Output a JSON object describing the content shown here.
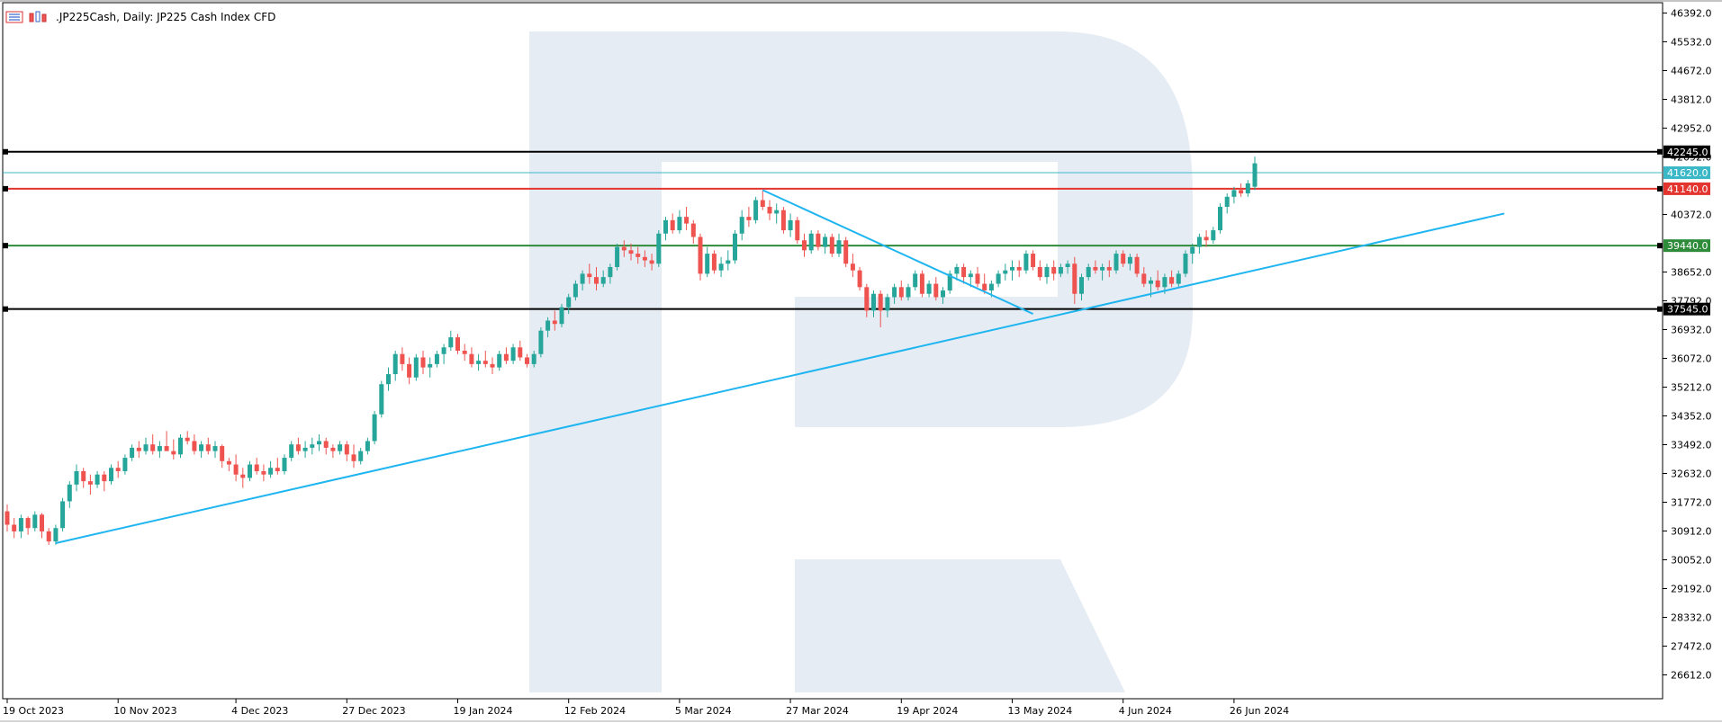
{
  "header": {
    "symbol": ".JP225Cash",
    "timeframe": "Daily",
    "description": "JP225 Cash Index CFD",
    "icons": [
      "candlestick-settings-icon",
      "indicators-icon"
    ]
  },
  "colors": {
    "bull": "#26a69a",
    "bear": "#ef5350",
    "trendline": "#1fb5f0",
    "resistance_black": "#000000",
    "resistance_red": "#e3342f",
    "support_green": "#2e8b3a",
    "current_price": "#3bb8c8",
    "watermark": "#e6ecf3",
    "axis": "#000000"
  },
  "chart_data": {
    "type": "candlestick",
    "title": ".JP225Cash, Daily:  JP225 Cash Index CFD",
    "xlabel": "",
    "ylabel": "",
    "ylim": [
      25900,
      46700
    ],
    "y_ticks": [
      "46392.0",
      "45532.0",
      "44672.0",
      "43812.0",
      "42952.0",
      "42092.0",
      "40372.0",
      "38652.0",
      "37792.0",
      "36932.0",
      "36072.0",
      "35212.0",
      "34352.0",
      "33492.0",
      "32632.0",
      "31772.0",
      "30912.0",
      "30052.0",
      "29192.0",
      "28332.0",
      "27472.0",
      "26612.0"
    ],
    "x_ticks": [
      "19 Oct 2023",
      "10 Nov 2023",
      "4 Dec 2023",
      "27 Dec 2023",
      "19 Jan 2024",
      "12 Feb 2024",
      "5 Mar 2024",
      "27 Mar 2024",
      "19 Apr 2024",
      "13 May 2024",
      "4 Jun 2024",
      "26 Jun 2024"
    ],
    "x_tick_bar_index": [
      0,
      16,
      33,
      49,
      65,
      81,
      97,
      113,
      129,
      145,
      161,
      177
    ],
    "levels": [
      {
        "label": "42245.0",
        "value": 42245.0,
        "color_key": "resistance_black"
      },
      {
        "label": "41620.0",
        "value": 41620.0,
        "color_key": "current_price",
        "thin": true
      },
      {
        "label": "41140.0",
        "value": 41140.0,
        "color_key": "resistance_red"
      },
      {
        "label": "39440.0",
        "value": 39440.0,
        "color_key": "support_green"
      },
      {
        "label": "37545.0",
        "value": 37545.0,
        "color_key": "resistance_black"
      }
    ],
    "trendlines": [
      {
        "from": [
          7,
          30550
        ],
        "to": [
          216,
          40400
        ]
      },
      {
        "from": [
          109,
          41100
        ],
        "to": [
          148,
          37400
        ]
      }
    ],
    "ohlc": [
      [
        31500,
        31700,
        30900,
        31100
      ],
      [
        31100,
        31300,
        30700,
        30900
      ],
      [
        30900,
        31400,
        30700,
        31300
      ],
      [
        31300,
        31350,
        30800,
        31000
      ],
      [
        31000,
        31500,
        30900,
        31400
      ],
      [
        31400,
        31450,
        30700,
        30900
      ],
      [
        30900,
        31000,
        30500,
        30600
      ],
      [
        30600,
        31100,
        30500,
        31000
      ],
      [
        31000,
        31900,
        30900,
        31800
      ],
      [
        31800,
        32400,
        31600,
        32300
      ],
      [
        32300,
        32900,
        32100,
        32700
      ],
      [
        32700,
        32800,
        32200,
        32400
      ],
      [
        32400,
        32600,
        32000,
        32300
      ],
      [
        32300,
        32700,
        32200,
        32600
      ],
      [
        32600,
        32700,
        32100,
        32400
      ],
      [
        32400,
        32900,
        32300,
        32800
      ],
      [
        32800,
        33000,
        32500,
        32700
      ],
      [
        32700,
        33200,
        32600,
        33100
      ],
      [
        33100,
        33500,
        33000,
        33400
      ],
      [
        33400,
        33600,
        33100,
        33300
      ],
      [
        33300,
        33700,
        33200,
        33500
      ],
      [
        33500,
        33800,
        33200,
        33300
      ],
      [
        33300,
        33600,
        33100,
        33450
      ],
      [
        33450,
        33900,
        33400,
        33300
      ],
      [
        33300,
        33650,
        33050,
        33200
      ],
      [
        33200,
        33800,
        33100,
        33700
      ],
      [
        33700,
        33900,
        33500,
        33600
      ],
      [
        33600,
        33800,
        33200,
        33300
      ],
      [
        33300,
        33600,
        33100,
        33500
      ],
      [
        33500,
        33700,
        33200,
        33300
      ],
      [
        33300,
        33600,
        33100,
        33450
      ],
      [
        33450,
        33500,
        32800,
        33000
      ],
      [
        33000,
        33100,
        32700,
        32900
      ],
      [
        32900,
        33200,
        32400,
        32600
      ],
      [
        32600,
        32800,
        32200,
        32500
      ],
      [
        32500,
        33000,
        32400,
        32900
      ],
      [
        32900,
        33100,
        32600,
        32700
      ],
      [
        32700,
        32900,
        32400,
        32600
      ],
      [
        32600,
        33000,
        32500,
        32800
      ],
      [
        32800,
        33100,
        32600,
        32700
      ],
      [
        32700,
        33200,
        32600,
        33100
      ],
      [
        33100,
        33600,
        33000,
        33500
      ],
      [
        33500,
        33700,
        33200,
        33300
      ],
      [
        33300,
        33600,
        33100,
        33400
      ],
      [
        33400,
        33700,
        33200,
        33500
      ],
      [
        33500,
        33800,
        33300,
        33600
      ],
      [
        33600,
        33700,
        33200,
        33400
      ],
      [
        33400,
        33500,
        33100,
        33300
      ],
      [
        33300,
        33600,
        33200,
        33500
      ],
      [
        33500,
        33600,
        33000,
        33200
      ],
      [
        33200,
        33500,
        32800,
        33000
      ],
      [
        33000,
        33400,
        32900,
        33300
      ],
      [
        33300,
        33700,
        33200,
        33600
      ],
      [
        33600,
        34500,
        33500,
        34400
      ],
      [
        34400,
        35400,
        34300,
        35300
      ],
      [
        35300,
        35800,
        35100,
        35600
      ],
      [
        35600,
        36300,
        35400,
        36200
      ],
      [
        36200,
        36400,
        35700,
        35900
      ],
      [
        35900,
        36100,
        35300,
        35500
      ],
      [
        35500,
        36200,
        35400,
        36100
      ],
      [
        36100,
        36300,
        35600,
        35800
      ],
      [
        35800,
        36100,
        35500,
        35900
      ],
      [
        35900,
        36300,
        35800,
        36200
      ],
      [
        36200,
        36500,
        35900,
        36400
      ],
      [
        36400,
        36900,
        36300,
        36700
      ],
      [
        36700,
        36800,
        36200,
        36300
      ],
      [
        36300,
        36500,
        36000,
        36200
      ],
      [
        36200,
        36400,
        35800,
        35900
      ],
      [
        35900,
        36200,
        35700,
        36000
      ],
      [
        36000,
        36300,
        35800,
        35900
      ],
      [
        35900,
        36100,
        35600,
        35800
      ],
      [
        35800,
        36300,
        35700,
        36200
      ],
      [
        36200,
        36400,
        35900,
        36000
      ],
      [
        36000,
        36500,
        35900,
        36400
      ],
      [
        36400,
        36600,
        36000,
        36100
      ],
      [
        36100,
        36200,
        35800,
        35900
      ],
      [
        35900,
        36300,
        35800,
        36200
      ],
      [
        36200,
        37000,
        36100,
        36900
      ],
      [
        36900,
        37300,
        36700,
        37200
      ],
      [
        37200,
        37500,
        36900,
        37100
      ],
      [
        37100,
        37700,
        37000,
        37600
      ],
      [
        37600,
        38000,
        37400,
        37900
      ],
      [
        37900,
        38400,
        37800,
        38300
      ],
      [
        38300,
        38700,
        38100,
        38600
      ],
      [
        38600,
        38900,
        38300,
        38500
      ],
      [
        38500,
        38800,
        38100,
        38300
      ],
      [
        38300,
        38700,
        38200,
        38500
      ],
      [
        38500,
        38900,
        38300,
        38800
      ],
      [
        38800,
        39500,
        38700,
        39400
      ],
      [
        39400,
        39600,
        39100,
        39300
      ],
      [
        39300,
        39500,
        39000,
        39200
      ],
      [
        39200,
        39400,
        38900,
        39100
      ],
      [
        39100,
        39300,
        38800,
        39000
      ],
      [
        39000,
        39200,
        38700,
        38900
      ],
      [
        38900,
        39900,
        38800,
        39800
      ],
      [
        39800,
        40300,
        39600,
        40200
      ],
      [
        40200,
        40400,
        39800,
        39900
      ],
      [
        39900,
        40500,
        39800,
        40300
      ],
      [
        40300,
        40600,
        39900,
        40100
      ],
      [
        40100,
        40200,
        39500,
        39700
      ],
      [
        39700,
        39800,
        38400,
        38600
      ],
      [
        38600,
        39400,
        38500,
        39200
      ],
      [
        39200,
        39300,
        38600,
        38700
      ],
      [
        38700,
        39100,
        38500,
        38900
      ],
      [
        38900,
        39300,
        38700,
        39000
      ],
      [
        39000,
        39900,
        38900,
        39800
      ],
      [
        39800,
        40500,
        39600,
        40300
      ],
      [
        40300,
        40600,
        40000,
        40200
      ],
      [
        40200,
        40900,
        40100,
        40800
      ],
      [
        40800,
        41100,
        40500,
        40600
      ],
      [
        40600,
        40800,
        40200,
        40400
      ],
      [
        40400,
        40700,
        40100,
        40500
      ],
      [
        40500,
        40600,
        39800,
        39900
      ],
      [
        39900,
        40400,
        39700,
        40200
      ],
      [
        40200,
        40300,
        39500,
        39600
      ],
      [
        39600,
        39800,
        39100,
        39300
      ],
      [
        39300,
        39900,
        39200,
        39800
      ],
      [
        39800,
        39900,
        39300,
        39400
      ],
      [
        39400,
        39800,
        39200,
        39700
      ],
      [
        39700,
        39800,
        39100,
        39200
      ],
      [
        39200,
        39800,
        39100,
        39600
      ],
      [
        39600,
        39700,
        38800,
        38900
      ],
      [
        38900,
        39200,
        38500,
        38700
      ],
      [
        38700,
        38800,
        38100,
        38200
      ],
      [
        38200,
        38300,
        37300,
        37500
      ],
      [
        37500,
        38100,
        37300,
        38000
      ],
      [
        38000,
        38100,
        37000,
        37500
      ],
      [
        37500,
        38000,
        37300,
        37900
      ],
      [
        37900,
        38300,
        37700,
        38200
      ],
      [
        38200,
        38400,
        37800,
        37900
      ],
      [
        37900,
        38300,
        37800,
        38200
      ],
      [
        38200,
        38700,
        38100,
        38600
      ],
      [
        38600,
        38700,
        37900,
        38000
      ],
      [
        38000,
        38400,
        37900,
        38300
      ],
      [
        38300,
        38500,
        37800,
        37900
      ],
      [
        37900,
        38200,
        37700,
        38100
      ],
      [
        38100,
        38700,
        38000,
        38600
      ],
      [
        38600,
        38900,
        38400,
        38800
      ],
      [
        38800,
        38900,
        38300,
        38500
      ],
      [
        38500,
        38700,
        38200,
        38600
      ],
      [
        38600,
        38800,
        38200,
        38300
      ],
      [
        38300,
        38600,
        38000,
        38100
      ],
      [
        38100,
        38400,
        37900,
        38300
      ],
      [
        38300,
        38700,
        38200,
        38600
      ],
      [
        38600,
        38900,
        38400,
        38700
      ],
      [
        38700,
        39000,
        38400,
        38800
      ],
      [
        38800,
        39000,
        38500,
        38700
      ],
      [
        38700,
        39300,
        38600,
        39200
      ],
      [
        39200,
        39300,
        38700,
        38800
      ],
      [
        38800,
        39000,
        38400,
        38500
      ],
      [
        38500,
        38900,
        38300,
        38800
      ],
      [
        38800,
        39000,
        38400,
        38600
      ],
      [
        38600,
        38900,
        38500,
        38800
      ],
      [
        38800,
        39000,
        38600,
        38900
      ],
      [
        38900,
        39100,
        37700,
        38000
      ],
      [
        38000,
        38600,
        37800,
        38500
      ],
      [
        38500,
        38900,
        38400,
        38800
      ],
      [
        38800,
        39000,
        38600,
        38700
      ],
      [
        38700,
        38900,
        38400,
        38800
      ],
      [
        38800,
        39000,
        38500,
        38700
      ],
      [
        38700,
        39300,
        38600,
        39200
      ],
      [
        39200,
        39300,
        38800,
        38900
      ],
      [
        38900,
        39200,
        38700,
        39100
      ],
      [
        39100,
        39200,
        38500,
        38600
      ],
      [
        38600,
        38800,
        38200,
        38300
      ],
      [
        38300,
        38500,
        37900,
        38400
      ],
      [
        38400,
        38700,
        38100,
        38200
      ],
      [
        38200,
        38600,
        38000,
        38500
      ],
      [
        38500,
        38700,
        38200,
        38300
      ],
      [
        38300,
        38700,
        38200,
        38600
      ],
      [
        38600,
        39300,
        38500,
        39200
      ],
      [
        39200,
        39500,
        38900,
        39400
      ],
      [
        39400,
        39800,
        39200,
        39700
      ],
      [
        39700,
        39900,
        39400,
        39600
      ],
      [
        39600,
        40000,
        39500,
        39900
      ],
      [
        39900,
        40700,
        39800,
        40600
      ],
      [
        40600,
        41000,
        40400,
        40900
      ],
      [
        40900,
        41200,
        40700,
        41100
      ],
      [
        41100,
        41300,
        40900,
        41000
      ],
      [
        41000,
        41400,
        40900,
        41300
      ],
      [
        41200,
        42100,
        41100,
        41900
      ]
    ]
  }
}
